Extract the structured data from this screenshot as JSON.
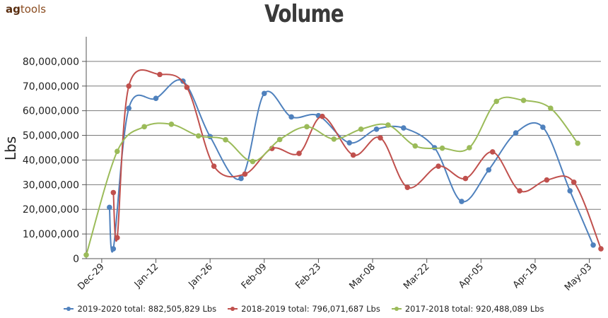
{
  "brand": {
    "prefix": "ag",
    "suffix": "tools"
  },
  "chart_data": {
    "type": "line",
    "title": "Volume",
    "ylabel": "Lbs",
    "xlabel": "",
    "ylim": [
      0,
      90000000
    ],
    "yticks": [
      0,
      10000000,
      20000000,
      30000000,
      40000000,
      50000000,
      60000000,
      70000000,
      80000000
    ],
    "ytick_labels": [
      "0",
      "10,000,000",
      "20,000,000",
      "30,000,000",
      "40,000,000",
      "50,000,000",
      "60,000,000",
      "70,000,000",
      "80,000,000"
    ],
    "xlim": [
      "2019-12-25",
      "2020-05-06"
    ],
    "xticks": [
      "2019-12-29",
      "2020-01-12",
      "2020-01-26",
      "2020-02-09",
      "2020-02-23",
      "2020-03-08",
      "2020-03-22",
      "2020-04-05",
      "2020-04-19",
      "2020-05-03"
    ],
    "xtick_labels": [
      "Dec-29",
      "Jan-12",
      "Jan-26",
      "Feb-09",
      "Feb-23",
      "Mar-08",
      "Mar-22",
      "Apr-05",
      "Apr-19",
      "May-03"
    ],
    "grid": true,
    "legend_position": "bottom",
    "series": [
      {
        "name": "2019-2020 total: 882,505,829 Lbs",
        "color": "#4f81bd",
        "points": [
          [
            "2019-12-31",
            20800000
          ],
          [
            "2020-01-01",
            4000000
          ],
          [
            "2020-01-05",
            61000000
          ],
          [
            "2020-01-12",
            65000000
          ],
          [
            "2020-01-19",
            72000000
          ],
          [
            "2020-01-26",
            49500000
          ],
          [
            "2020-02-03",
            32500000
          ],
          [
            "2020-02-09",
            67000000
          ],
          [
            "2020-02-16",
            57500000
          ],
          [
            "2020-02-23",
            58000000
          ],
          [
            "2020-03-02",
            47000000
          ],
          [
            "2020-03-09",
            52500000
          ],
          [
            "2020-03-16",
            53000000
          ],
          [
            "2020-03-24",
            45000000
          ],
          [
            "2020-03-31",
            23200000
          ],
          [
            "2020-04-07",
            36000000
          ],
          [
            "2020-04-14",
            51000000
          ],
          [
            "2020-04-21",
            53300000
          ],
          [
            "2020-04-28",
            27500000
          ],
          [
            "2020-05-04",
            5500000
          ]
        ]
      },
      {
        "name": "2018-2019 total: 796,071,687 Lbs",
        "color": "#c0504d",
        "points": [
          [
            "2020-01-01",
            26800000
          ],
          [
            "2020-01-02",
            8500000
          ],
          [
            "2020-01-05",
            70000000
          ],
          [
            "2020-01-13",
            74700000
          ],
          [
            "2020-01-20",
            69500000
          ],
          [
            "2020-01-27",
            37500000
          ],
          [
            "2020-02-04",
            34300000
          ],
          [
            "2020-02-11",
            44700000
          ],
          [
            "2020-02-18",
            42700000
          ],
          [
            "2020-02-24",
            57700000
          ],
          [
            "2020-03-03",
            42000000
          ],
          [
            "2020-03-10",
            49000000
          ],
          [
            "2020-03-17",
            28900000
          ],
          [
            "2020-03-25",
            37500000
          ],
          [
            "2020-04-01",
            32500000
          ],
          [
            "2020-04-08",
            43300000
          ],
          [
            "2020-04-15",
            27500000
          ],
          [
            "2020-04-22",
            31900000
          ],
          [
            "2020-04-29",
            31000000
          ],
          [
            "2020-05-06",
            4000000
          ]
        ]
      },
      {
        "name": "2017-2018 total: 920,488,089 Lbs",
        "color": "#9bbb59",
        "points": [
          [
            "2019-12-25",
            1500000
          ],
          [
            "2020-01-02",
            43500000
          ],
          [
            "2020-01-09",
            53500000
          ],
          [
            "2020-01-16",
            54500000
          ],
          [
            "2020-01-23",
            49800000
          ],
          [
            "2020-01-30",
            48200000
          ],
          [
            "2020-02-06",
            39400000
          ],
          [
            "2020-02-13",
            48300000
          ],
          [
            "2020-02-20",
            53500000
          ],
          [
            "2020-02-27",
            48500000
          ],
          [
            "2020-03-05",
            52500000
          ],
          [
            "2020-03-12",
            54200000
          ],
          [
            "2020-03-19",
            45700000
          ],
          [
            "2020-03-26",
            44800000
          ],
          [
            "2020-04-02",
            45000000
          ],
          [
            "2020-04-09",
            63800000
          ],
          [
            "2020-04-16",
            64200000
          ],
          [
            "2020-04-23",
            61000000
          ],
          [
            "2020-04-30",
            46800000
          ]
        ]
      }
    ]
  }
}
